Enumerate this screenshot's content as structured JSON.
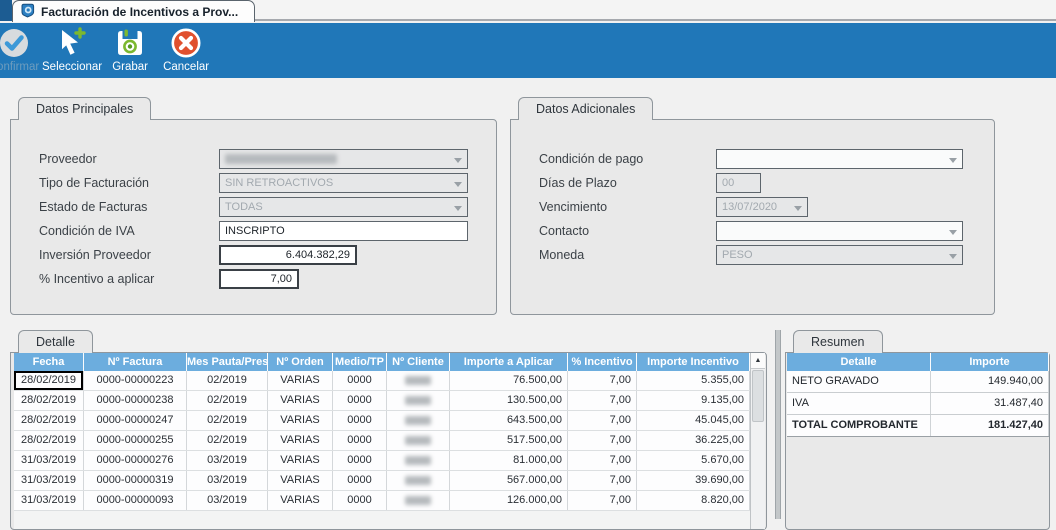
{
  "window": {
    "tab_title": "Facturación de Incentivos a Prov..."
  },
  "toolbar": {
    "buttons": [
      {
        "label": "Confirmar",
        "icon": "confirm-check-icon",
        "disabled": true
      },
      {
        "label": "Seleccionar",
        "icon": "select-cursor-icon",
        "disabled": false
      },
      {
        "label": "Grabar",
        "icon": "save-disk-icon",
        "disabled": false
      },
      {
        "label": "Cancelar",
        "icon": "cancel-x-icon",
        "disabled": false
      }
    ]
  },
  "datos_principales": {
    "title": "Datos Principales",
    "proveedor": {
      "label": "Proveedor",
      "value": "",
      "redacted": true
    },
    "tipo_facturacion": {
      "label": "Tipo de Facturación",
      "value": "SIN RETROACTIVOS"
    },
    "estado_facturas": {
      "label": "Estado de Facturas",
      "value": "TODAS"
    },
    "condicion_iva": {
      "label": "Condición de IVA",
      "value": "INSCRIPTO"
    },
    "inversion_proveedor": {
      "label": "Inversión Proveedor",
      "value": "6.404.382,29"
    },
    "incentivo_aplicar": {
      "label": "% Incentivo a aplicar",
      "value": "7,00"
    }
  },
  "datos_adicionales": {
    "title": "Datos Adicionales",
    "condicion_pago": {
      "label": "Condición de pago",
      "value": ""
    },
    "dias_plazo": {
      "label": "Días de Plazo",
      "value": "00"
    },
    "vencimiento": {
      "label": "Vencimiento",
      "value": "13/07/2020"
    },
    "contacto": {
      "label": "Contacto",
      "value": ""
    },
    "moneda": {
      "label": "Moneda",
      "value": "PESO"
    }
  },
  "detalle": {
    "title": "Detalle",
    "columns": [
      "Fecha",
      "Nº Factura",
      "Mes Pauta/Pres",
      "Nº Orden",
      "Medio/TP",
      "Nº Cliente",
      "Importe a Aplicar",
      "% Incentivo",
      "Importe Incentivo"
    ],
    "rows": [
      [
        "28/02/2019",
        "0000-00000223",
        "02/2019",
        "VARIAS",
        "0000",
        null,
        "76.500,00",
        "7,00",
        "5.355,00"
      ],
      [
        "28/02/2019",
        "0000-00000238",
        "02/2019",
        "VARIAS",
        "0000",
        null,
        "130.500,00",
        "7,00",
        "9.135,00"
      ],
      [
        "28/02/2019",
        "0000-00000247",
        "02/2019",
        "VARIAS",
        "0000",
        null,
        "643.500,00",
        "7,00",
        "45.045,00"
      ],
      [
        "28/02/2019",
        "0000-00000255",
        "02/2019",
        "VARIAS",
        "0000",
        null,
        "517.500,00",
        "7,00",
        "36.225,00"
      ],
      [
        "31/03/2019",
        "0000-00000276",
        "03/2019",
        "VARIAS",
        "0000",
        null,
        "81.000,00",
        "7,00",
        "5.670,00"
      ],
      [
        "31/03/2019",
        "0000-00000319",
        "03/2019",
        "VARIAS",
        "0000",
        null,
        "567.000,00",
        "7,00",
        "39.690,00"
      ],
      [
        "31/03/2019",
        "0000-00000093",
        "03/2019",
        "VARIAS",
        "0000",
        null,
        "126.000,00",
        "7,00",
        "8.820,00"
      ]
    ],
    "focus_cell": {
      "row": 0,
      "col": 0
    }
  },
  "resumen": {
    "title": "Resumen",
    "columns": [
      "Detalle",
      "Importe"
    ],
    "rows": [
      [
        "NETO GRAVADO",
        "149.940,00"
      ],
      [
        "IVA",
        "31.487,40"
      ],
      [
        "TOTAL COMPROBANTE",
        "181.427,40"
      ]
    ]
  },
  "colors": {
    "toolbar_blue": "#2077b8",
    "table_header_blue": "#6cadde",
    "cancel_red": "#e0502e",
    "icon_green": "#7cb82f"
  }
}
